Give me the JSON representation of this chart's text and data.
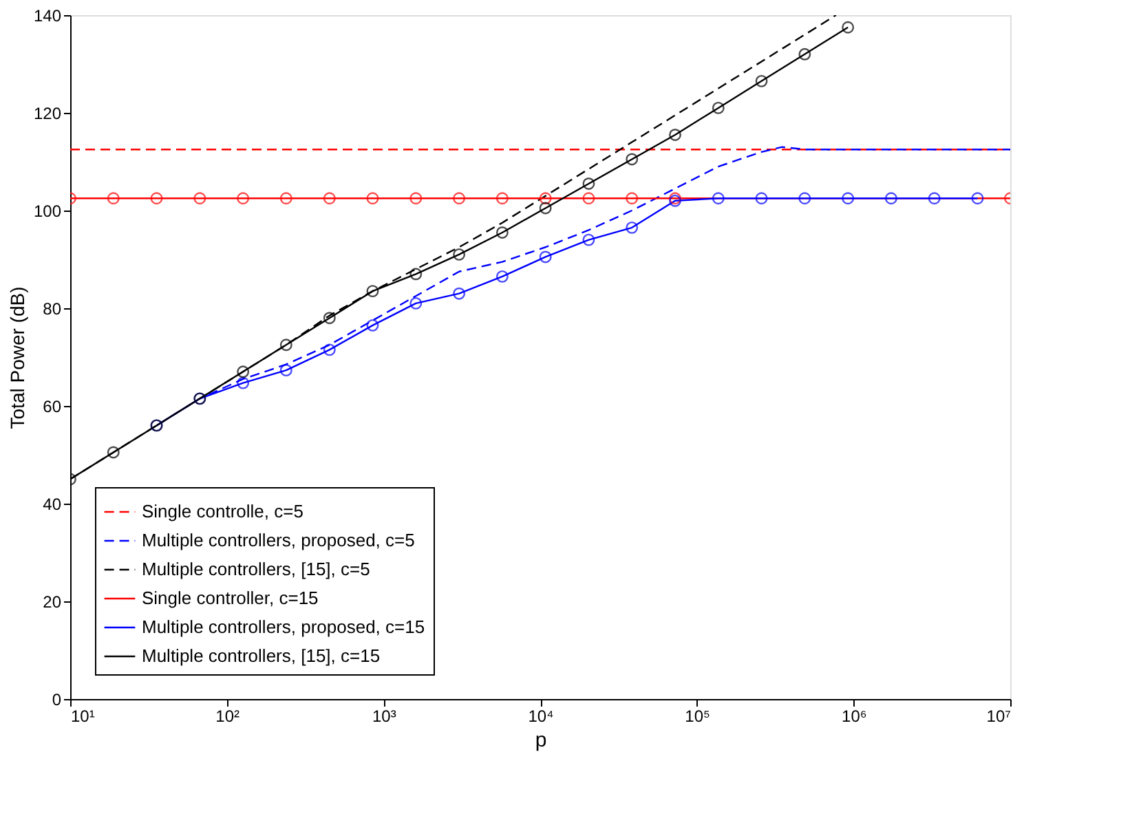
{
  "chart_data": {
    "type": "line",
    "xlabel": "p",
    "ylabel": "Total Power (dB)",
    "log": "x",
    "grid": false,
    "legend": "bottom left",
    "xlim": [
      10,
      10000000
    ],
    "ylim": [
      0,
      140
    ],
    "xticks": [
      {
        "value": 10,
        "label": "10¹"
      },
      {
        "value": 100,
        "label": "10²"
      },
      {
        "value": 1000,
        "label": "10³"
      },
      {
        "value": 10000,
        "label": "10⁴"
      },
      {
        "value": 100000,
        "label": "10⁵"
      },
      {
        "value": 1000000,
        "label": "10⁶"
      },
      {
        "value": 10000000,
        "label": "10⁷"
      }
    ],
    "yticks": [
      0,
      20,
      40,
      60,
      80,
      100,
      120,
      140
    ],
    "series": [
      {
        "name": "Single controlle, c=5",
        "color": "#ff0000",
        "line_style": "dashed",
        "marker": "none",
        "x": [
          10,
          10000000
        ],
        "values": [
          112.5,
          112.5
        ]
      },
      {
        "name": "Multiple controllers, proposed, c=5",
        "color": "#0000ff",
        "line_style": "dashed",
        "marker": "none",
        "x": [
          35.6,
          67.2,
          126.8,
          239,
          452,
          852,
          1608,
          3035,
          5727,
          10807,
          20392,
          38480,
          72610,
          137000,
          258500,
          350000,
          487800,
          10000000
        ],
        "values": [
          56,
          61.5,
          65.5,
          68.5,
          72.5,
          77.5,
          82.5,
          87.5,
          89.5,
          92.5,
          96,
          100,
          104.5,
          109,
          112,
          113,
          112.5,
          112.5
        ]
      },
      {
        "name": "Multiple controllers, [15], c=5",
        "color": "#000000",
        "line_style": "dashed",
        "marker": "none",
        "x": [
          10,
          18.87,
          35.6,
          67.2,
          126.8,
          239,
          452,
          852,
          1608,
          3035,
          5727,
          10807,
          20392,
          38480,
          72610,
          137000,
          258500,
          487800,
          772000
        ],
        "values": [
          45,
          50.5,
          56,
          61.5,
          67,
          72.5,
          78.5,
          83.5,
          88,
          92.5,
          97.5,
          103,
          108.5,
          114,
          119.5,
          125,
          130.5,
          136,
          140
        ]
      },
      {
        "name": "Single controller, c=15",
        "color": "#ff0000",
        "line_style": "solid",
        "marker": "circle",
        "x": [
          10,
          18.87,
          35.6,
          67.2,
          126.8,
          239,
          452,
          852,
          1608,
          3035,
          5727,
          10807,
          20392,
          38480,
          72610,
          10000000
        ],
        "values": [
          102.5,
          102.5,
          102.5,
          102.5,
          102.5,
          102.5,
          102.5,
          102.5,
          102.5,
          102.5,
          102.5,
          102.5,
          102.5,
          102.5,
          102.5,
          102.5
        ]
      },
      {
        "name": "Multiple controllers, proposed, c=15",
        "color": "#0000ff",
        "line_style": "solid",
        "marker": "circle",
        "x": [
          35.6,
          67.2,
          126.8,
          239,
          452,
          852,
          1608,
          3035,
          5727,
          10807,
          20392,
          38480,
          72610,
          137000,
          258500,
          487800,
          920500,
          1737000,
          3278000,
          6185000
        ],
        "values": [
          56,
          61.5,
          64.7,
          67.3,
          71.5,
          76.5,
          81,
          83,
          86.5,
          90.5,
          94,
          96.5,
          102,
          102.5,
          102.5,
          102.5,
          102.5,
          102.5,
          102.5,
          102.5
        ]
      },
      {
        "name": "Multiple controllers, [15], c=15",
        "color": "#000000",
        "line_style": "solid",
        "marker": "circle",
        "x": [
          10,
          18.87,
          35.6,
          67.2,
          126.8,
          239,
          452,
          852,
          1608,
          3035,
          5727,
          10807,
          20392,
          38480,
          72610,
          137000,
          258500,
          487800,
          920500
        ],
        "values": [
          45,
          50.5,
          56,
          61.5,
          67,
          72.5,
          78,
          83.5,
          87,
          91,
          95.5,
          100.5,
          105.5,
          110.5,
          115.5,
          121,
          126.5,
          132,
          137.5
        ]
      }
    ]
  }
}
